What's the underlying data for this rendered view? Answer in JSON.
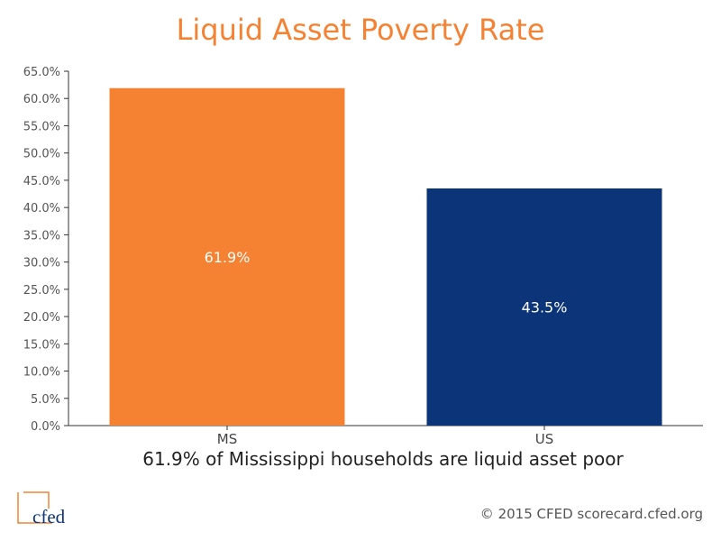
{
  "chart_data": {
    "type": "bar",
    "title": "Liquid Asset Poverty Rate",
    "categories": [
      "MS",
      "US"
    ],
    "values": [
      61.9,
      43.5
    ],
    "data_labels": [
      "61.9%",
      "43.5%"
    ],
    "bar_colors": [
      "#f58233",
      "#0c3479"
    ],
    "ylim": [
      0,
      65
    ],
    "ytick_labels": [
      "0.0%",
      "5.0%",
      "10.0%",
      "15.0%",
      "20.0%",
      "25.0%",
      "30.0%",
      "35.0%",
      "40.0%",
      "45.0%",
      "50.0%",
      "55.0%",
      "60.0%",
      "65.0%"
    ],
    "xlabel": "",
    "ylabel": "",
    "grid": false,
    "legend": "none"
  },
  "caption": "61.9% of Mississippi households are liquid asset poor",
  "footer": "© 2015 CFED scorecard.cfed.org",
  "logo": {
    "text": "cfed",
    "color": "#0c3479",
    "accent": "#f58233"
  },
  "colors": {
    "title": "#f58233",
    "orange": "#f58233",
    "navy": "#0c3479"
  }
}
